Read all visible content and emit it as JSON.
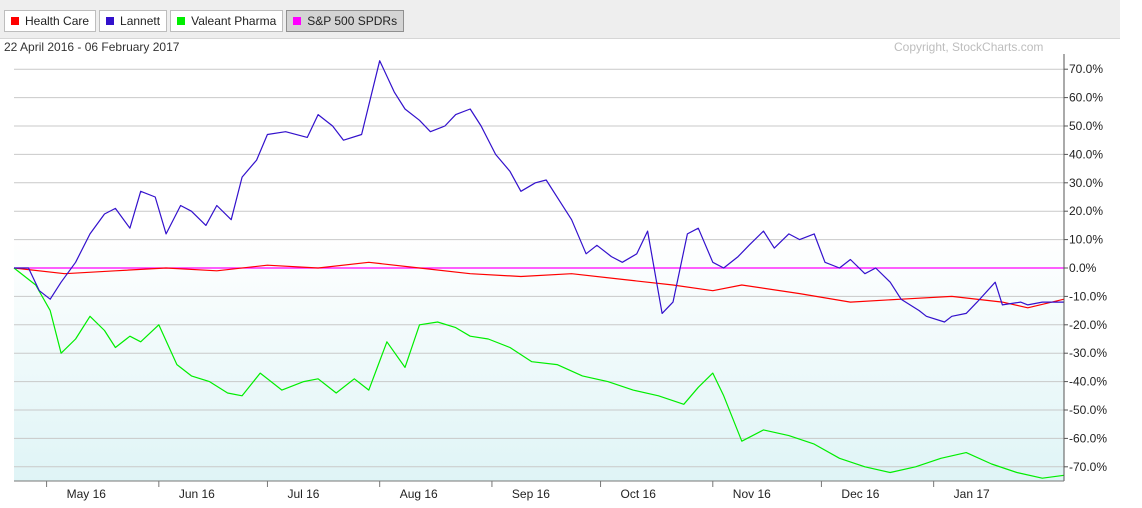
{
  "legend": [
    {
      "label": "Health Care",
      "color": "#ff0000",
      "selected": false
    },
    {
      "label": "Lannett",
      "color": "#3311cc",
      "selected": false
    },
    {
      "label": "Valeant Pharma",
      "color": "#00ee00",
      "selected": false
    },
    {
      "label": "S&P 500 SPDRs",
      "color": "#ff00ff",
      "selected": true
    }
  ],
  "header": {
    "date_range": "22 April 2016 - 06 February 2017",
    "copyright": "Copyright, StockCharts.com"
  },
  "chart_data": {
    "type": "line",
    "ylim": [
      -75,
      75
    ],
    "grid": true,
    "legend_position": "top-left",
    "xlim": [
      "2016-04-22",
      "2017-02-06"
    ],
    "y_ticks": [
      70,
      60,
      50,
      40,
      30,
      20,
      10,
      0,
      -10,
      -20,
      -30,
      -40,
      -50,
      -60,
      -70
    ],
    "y_tick_labels": [
      "70.0%",
      "60.0%",
      "50.0%",
      "40.0%",
      "30.0%",
      "20.0%",
      "10.0%",
      "0.0%",
      "-10.0%",
      "-20.0%",
      "-30.0%",
      "-40.0%",
      "-50.0%",
      "-60.0%",
      "-70.0%"
    ],
    "x_ticks": [
      {
        "label": "May 16",
        "date": "2016-05-01"
      },
      {
        "label": "Jun 16",
        "date": "2016-06-01"
      },
      {
        "label": "Jul 16",
        "date": "2016-07-01"
      },
      {
        "label": "Aug 16",
        "date": "2016-08-01"
      },
      {
        "label": "Sep 16",
        "date": "2016-09-01"
      },
      {
        "label": "Oct 16",
        "date": "2016-10-01"
      },
      {
        "label": "Nov 16",
        "date": "2016-11-01"
      },
      {
        "label": "Dec 16",
        "date": "2016-12-01"
      },
      {
        "label": "Jan 17",
        "date": "2017-01-01"
      }
    ],
    "series": [
      {
        "name": "Health Care",
        "color": "#ff0000",
        "x": [
          "2016-04-22",
          "2016-05-06",
          "2016-05-20",
          "2016-06-03",
          "2016-06-17",
          "2016-07-01",
          "2016-07-15",
          "2016-07-29",
          "2016-08-12",
          "2016-08-26",
          "2016-09-09",
          "2016-09-23",
          "2016-10-07",
          "2016-10-21",
          "2016-11-01",
          "2016-11-09",
          "2016-11-25",
          "2016-12-09",
          "2016-12-23",
          "2017-01-06",
          "2017-01-20",
          "2017-01-27",
          "2017-02-06"
        ],
        "y": [
          0,
          -2,
          -1,
          0,
          -1,
          1,
          0,
          2,
          0,
          -2,
          -3,
          -2,
          -4,
          -6,
          -8,
          -6,
          -9,
          -12,
          -11,
          -10,
          -12,
          -14,
          -11
        ]
      },
      {
        "name": "Lannett",
        "color": "#3311cc",
        "x": [
          "2016-04-22",
          "2016-04-26",
          "2016-04-29",
          "2016-05-02",
          "2016-05-05",
          "2016-05-09",
          "2016-05-13",
          "2016-05-17",
          "2016-05-20",
          "2016-05-24",
          "2016-05-27",
          "2016-05-31",
          "2016-06-03",
          "2016-06-07",
          "2016-06-10",
          "2016-06-14",
          "2016-06-17",
          "2016-06-21",
          "2016-06-24",
          "2016-06-28",
          "2016-07-01",
          "2016-07-06",
          "2016-07-12",
          "2016-07-15",
          "2016-07-19",
          "2016-07-22",
          "2016-07-27",
          "2016-08-01",
          "2016-08-05",
          "2016-08-08",
          "2016-08-12",
          "2016-08-15",
          "2016-08-19",
          "2016-08-22",
          "2016-08-26",
          "2016-08-29",
          "2016-09-02",
          "2016-09-06",
          "2016-09-09",
          "2016-09-13",
          "2016-09-16",
          "2016-09-20",
          "2016-09-23",
          "2016-09-27",
          "2016-09-30",
          "2016-10-04",
          "2016-10-07",
          "2016-10-11",
          "2016-10-14",
          "2016-10-18",
          "2016-10-21",
          "2016-10-25",
          "2016-10-28",
          "2016-11-01",
          "2016-11-04",
          "2016-11-08",
          "2016-11-11",
          "2016-11-15",
          "2016-11-18",
          "2016-11-22",
          "2016-11-25",
          "2016-11-29",
          "2016-12-02",
          "2016-12-06",
          "2016-12-09",
          "2016-12-13",
          "2016-12-16",
          "2016-12-20",
          "2016-12-23",
          "2016-12-28",
          "2016-12-30",
          "2017-01-04",
          "2017-01-06",
          "2017-01-10",
          "2017-01-13",
          "2017-01-18",
          "2017-01-20",
          "2017-01-25",
          "2017-01-27",
          "2017-01-31",
          "2017-02-03",
          "2017-02-06"
        ],
        "y": [
          0,
          0,
          -8,
          -11,
          -5,
          2,
          12,
          19,
          21,
          14,
          27,
          25,
          12,
          22,
          20,
          15,
          22,
          17,
          32,
          38,
          47,
          48,
          46,
          54,
          50,
          45,
          47,
          73,
          62,
          56,
          52,
          48,
          50,
          54,
          56,
          50,
          40,
          34,
          27,
          30,
          31,
          23,
          17,
          5,
          8,
          4,
          2,
          5,
          13,
          -16,
          -12,
          12,
          14,
          2,
          0,
          4,
          8,
          13,
          7,
          12,
          10,
          12,
          2,
          0,
          3,
          -2,
          0,
          -5,
          -11,
          -15,
          -17,
          -19,
          -17,
          -16,
          -12,
          -5,
          -13,
          -12,
          -13,
          -12,
          -12,
          -12
        ]
      },
      {
        "name": "Valeant Pharma",
        "color": "#00ee00",
        "x": [
          "2016-04-22",
          "2016-04-28",
          "2016-05-02",
          "2016-05-05",
          "2016-05-09",
          "2016-05-13",
          "2016-05-17",
          "2016-05-20",
          "2016-05-24",
          "2016-05-27",
          "2016-06-01",
          "2016-06-06",
          "2016-06-10",
          "2016-06-15",
          "2016-06-20",
          "2016-06-24",
          "2016-06-29",
          "2016-07-05",
          "2016-07-11",
          "2016-07-15",
          "2016-07-20",
          "2016-07-25",
          "2016-07-29",
          "2016-08-03",
          "2016-08-08",
          "2016-08-12",
          "2016-08-17",
          "2016-08-22",
          "2016-08-26",
          "2016-08-31",
          "2016-09-06",
          "2016-09-12",
          "2016-09-19",
          "2016-09-26",
          "2016-10-03",
          "2016-10-10",
          "2016-10-17",
          "2016-10-24",
          "2016-10-28",
          "2016-11-01",
          "2016-11-04",
          "2016-11-09",
          "2016-11-15",
          "2016-11-22",
          "2016-11-29",
          "2016-12-06",
          "2016-12-13",
          "2016-12-20",
          "2016-12-27",
          "2017-01-03",
          "2017-01-10",
          "2017-01-17",
          "2017-01-24",
          "2017-01-31",
          "2017-02-06"
        ],
        "y": [
          0,
          -6,
          -15,
          -30,
          -25,
          -17,
          -22,
          -28,
          -24,
          -26,
          -20,
          -34,
          -38,
          -40,
          -44,
          -45,
          -37,
          -43,
          -40,
          -39,
          -44,
          -39,
          -43,
          -26,
          -35,
          -20,
          -19,
          -21,
          -24,
          -25,
          -28,
          -33,
          -34,
          -38,
          -40,
          -43,
          -45,
          -48,
          -42,
          -37,
          -45,
          -61,
          -57,
          -59,
          -62,
          -67,
          -70,
          -72,
          -70,
          -67,
          -65,
          -69,
          -72,
          -74,
          -73
        ]
      },
      {
        "name": "S&P 500 SPDRs",
        "color": "#ff00ff",
        "x": [
          "2016-04-22",
          "2017-02-06"
        ],
        "y": [
          0,
          0
        ]
      }
    ]
  }
}
